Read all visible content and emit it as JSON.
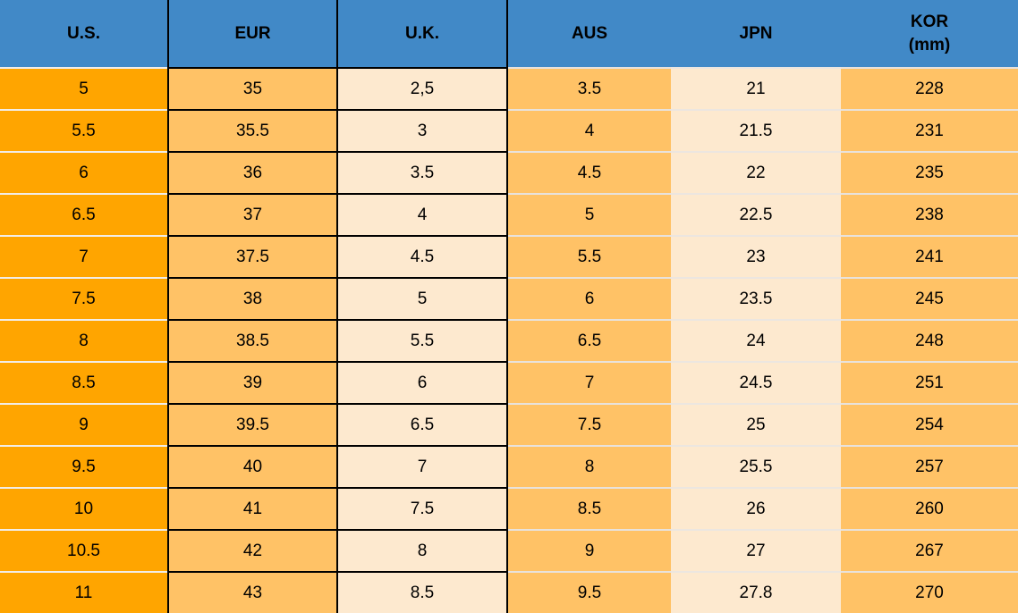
{
  "colors": {
    "header_bg": "#4189C7",
    "us_column_bg": "#FFA500",
    "orange_column_bg": "#FFC266",
    "cream_column_bg": "#FDE9CF",
    "black_border": "#000000",
    "light_separator": "#E8E2DC",
    "text": "#000000"
  },
  "table": {
    "columns": [
      {
        "key": "us",
        "label": "U.S."
      },
      {
        "key": "eur",
        "label": "EUR"
      },
      {
        "key": "uk",
        "label": "U.K."
      },
      {
        "key": "aus",
        "label": "AUS"
      },
      {
        "key": "jpn",
        "label": "JPN"
      },
      {
        "key": "kor",
        "label": "KOR",
        "sublabel": "(mm)"
      }
    ],
    "rows": [
      [
        "5",
        "35",
        "2,5",
        "3.5",
        "21",
        "228"
      ],
      [
        "5.5",
        "35.5",
        "3",
        "4",
        "21.5",
        "231"
      ],
      [
        "6",
        "36",
        "3.5",
        "4.5",
        "22",
        "235"
      ],
      [
        "6.5",
        "37",
        "4",
        "5",
        "22.5",
        "238"
      ],
      [
        "7",
        "37.5",
        "4.5",
        "5.5",
        "23",
        "241"
      ],
      [
        "7.5",
        "38",
        "5",
        "6",
        "23.5",
        "245"
      ],
      [
        "8",
        "38.5",
        "5.5",
        "6.5",
        "24",
        "248"
      ],
      [
        "8.5",
        "39",
        "6",
        "7",
        "24.5",
        "251"
      ],
      [
        "9",
        "39.5",
        "6.5",
        "7.5",
        "25",
        "254"
      ],
      [
        "9.5",
        "40",
        "7",
        "8",
        "25.5",
        "257"
      ],
      [
        "10",
        "41",
        "7.5",
        "8.5",
        "26",
        "260"
      ],
      [
        "10.5",
        "42",
        "8",
        "9",
        "27",
        "267"
      ],
      [
        "11",
        "43",
        "8.5",
        "9.5",
        "27.8",
        "270"
      ]
    ]
  },
  "chart_data": {
    "type": "table",
    "columns": [
      "U.S.",
      "EUR",
      "U.K.",
      "AUS",
      "JPN",
      "KOR (mm)"
    ],
    "rows": [
      [
        "5",
        "35",
        "2,5",
        "3.5",
        "21",
        "228"
      ],
      [
        "5.5",
        "35.5",
        "3",
        "4",
        "21.5",
        "231"
      ],
      [
        "6",
        "36",
        "3.5",
        "4.5",
        "22",
        "235"
      ],
      [
        "6.5",
        "37",
        "4",
        "5",
        "22.5",
        "238"
      ],
      [
        "7",
        "37.5",
        "4.5",
        "5.5",
        "23",
        "241"
      ],
      [
        "7.5",
        "38",
        "5",
        "6",
        "23.5",
        "245"
      ],
      [
        "8",
        "38.5",
        "5.5",
        "6.5",
        "24",
        "248"
      ],
      [
        "8.5",
        "39",
        "6",
        "7",
        "24.5",
        "251"
      ],
      [
        "9",
        "39.5",
        "6.5",
        "7.5",
        "25",
        "254"
      ],
      [
        "9.5",
        "40",
        "7",
        "8",
        "25.5",
        "257"
      ],
      [
        "10",
        "41",
        "7.5",
        "8.5",
        "26",
        "260"
      ],
      [
        "10.5",
        "42",
        "8",
        "9",
        "27",
        "267"
      ],
      [
        "11",
        "43",
        "8.5",
        "9.5",
        "27.8",
        "270"
      ]
    ],
    "layout": {
      "header_position": "top",
      "grid": "mixed: black boxed borders on EUR and U.K. columns, light row separators elsewhere"
    }
  }
}
